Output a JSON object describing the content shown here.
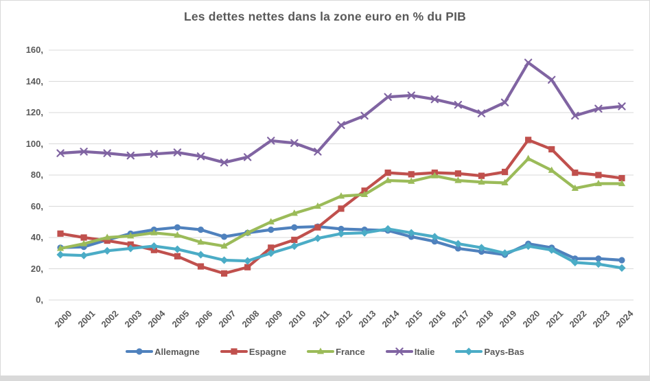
{
  "window": {
    "background": "#ffffff",
    "frame_border_color": "#d9d9d9",
    "bottom_strip_color": "#d9d9d9"
  },
  "chart_data": {
    "type": "line",
    "title": "Les dettes nettes dans la zone euro en % du PIB",
    "title_color": "#595959",
    "text_color": "#595959",
    "gridline_color": "#d9d9d9",
    "grid": "horizontal",
    "legend_position": "bottom",
    "ylim": [
      0,
      160
    ],
    "y_tick_step": 20,
    "y_tick_labels": [
      "0,",
      "20,",
      "40,",
      "60,",
      "80,",
      "100,",
      "120,",
      "140,",
      "160,"
    ],
    "categories": [
      "2000",
      "2001",
      "2002",
      "2003",
      "2004",
      "2005",
      "2006",
      "2007",
      "2008",
      "2009",
      "2010",
      "2011",
      "2012",
      "2013",
      "2014",
      "2015",
      "2016",
      "2017",
      "2018",
      "2019",
      "2020",
      "2021",
      "2022",
      "2023",
      "2024"
    ],
    "series": [
      {
        "name": "Allemagne",
        "color": "#4F81BD",
        "marker": "circle",
        "values": [
          33.5,
          34,
          38.5,
          42.5,
          45,
          46.5,
          45,
          40.5,
          43,
          45,
          46.5,
          47,
          45.5,
          45,
          44.5,
          40.5,
          37.5,
          33,
          31,
          29,
          36,
          33.5,
          26.5,
          26.5,
          25.5
        ]
      },
      {
        "name": "Espagne",
        "color": "#C0504D",
        "marker": "square",
        "values": [
          42.5,
          40,
          38,
          35.5,
          32,
          28,
          21.5,
          17,
          21,
          33.5,
          38.5,
          46.5,
          58.5,
          70,
          81.5,
          80.5,
          81.5,
          81,
          79.5,
          82,
          102.5,
          96.5,
          81.5,
          80,
          78
        ]
      },
      {
        "name": "France",
        "color": "#9BBB59",
        "marker": "triangle",
        "values": [
          33,
          36,
          40,
          41,
          43,
          41.5,
          37,
          34.5,
          43,
          50,
          55.5,
          60,
          66.5,
          67.5,
          76.5,
          76,
          79.5,
          76.5,
          75.5,
          75,
          90.5,
          83,
          71.5,
          74.5,
          74.5
        ]
      },
      {
        "name": "Italie",
        "color": "#8064A2",
        "marker": "x",
        "values": [
          94,
          95,
          94,
          92.5,
          93.5,
          94.5,
          92,
          88,
          91.5,
          102,
          100.5,
          95,
          112,
          118,
          130,
          131,
          128.5,
          125,
          119.5,
          126.5,
          152,
          141,
          118,
          122.5,
          124
        ]
      },
      {
        "name": "Pays-Bas",
        "color": "#4BACC6",
        "marker": "diamond",
        "values": [
          29,
          28.5,
          31.5,
          33,
          34.5,
          32.5,
          29,
          25.5,
          25,
          30,
          34.5,
          39.5,
          42.5,
          43,
          45.5,
          43,
          40.5,
          36,
          33.5,
          30,
          34.5,
          32,
          24,
          23,
          20.5
        ]
      }
    ]
  }
}
